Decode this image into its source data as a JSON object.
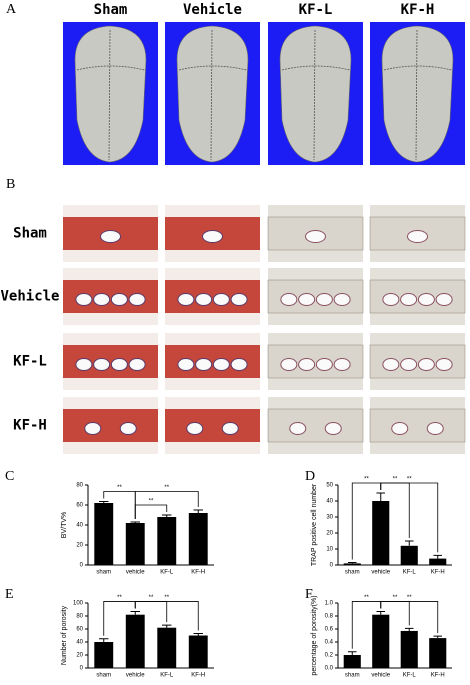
{
  "figure": {
    "panel_a": "A",
    "panel_b": "B",
    "columns": [
      "Sham",
      "Vehicle",
      "KF-L",
      "KF-H"
    ],
    "rows": [
      "Sham",
      "Vehicle",
      "KF-L",
      "KF-H"
    ]
  },
  "chart_data": [
    {
      "type": "bar",
      "panel": "C",
      "ylabel": "BV/TV%",
      "categories": [
        "sham",
        "vehicle",
        "KF-L",
        "KF-H"
      ],
      "values": [
        62,
        42,
        48,
        52
      ],
      "errors": [
        1.5,
        1,
        2,
        3
      ],
      "color": "#000000",
      "ylim": [
        0,
        80
      ],
      "yticks": [
        0,
        20,
        40,
        60,
        80
      ],
      "comparisons": [
        {
          "label": "**",
          "between": [
            "sham",
            "vehicle"
          ]
        },
        {
          "label": "**",
          "between": [
            "vehicle",
            "KF-L"
          ]
        },
        {
          "label": "**",
          "between": [
            "vehicle",
            "KF-H"
          ]
        }
      ]
    },
    {
      "type": "bar",
      "panel": "D",
      "ylabel": "TRAP positive cell number",
      "categories": [
        "sham",
        "vehicle",
        "KF-L",
        "KF-H"
      ],
      "values": [
        1,
        40,
        12,
        4
      ],
      "errors": [
        0.6,
        5,
        3,
        2
      ],
      "color": "#000000",
      "ylim": [
        0,
        50
      ],
      "yticks": [
        0,
        10,
        20,
        30,
        40,
        50
      ],
      "comparisons": [
        {
          "label": "**",
          "between": [
            "sham",
            "vehicle"
          ]
        },
        {
          "label": "**",
          "between": [
            "vehicle",
            "KF-L"
          ]
        },
        {
          "label": "**",
          "between": [
            "vehicle",
            "KF-H"
          ]
        }
      ]
    },
    {
      "type": "bar",
      "panel": "E",
      "ylabel": "Number of porosity",
      "categories": [
        "sham",
        "vehicle",
        "KF-L",
        "KF-H"
      ],
      "values": [
        40,
        82,
        62,
        50
      ],
      "errors": [
        5,
        5,
        4,
        3
      ],
      "color": "#000000",
      "ylim": [
        0,
        100
      ],
      "yticks": [
        0,
        20,
        40,
        60,
        80,
        100
      ],
      "comparisons": [
        {
          "label": "**",
          "between": [
            "sham",
            "vehicle"
          ]
        },
        {
          "label": "**",
          "between": [
            "vehicle",
            "KF-L"
          ]
        },
        {
          "label": "**",
          "between": [
            "vehicle",
            "KF-H"
          ]
        }
      ]
    },
    {
      "type": "bar",
      "panel": "F",
      "ylabel": "percentage of porosity(%)",
      "categories": [
        "sham",
        "vehicle",
        "KF-L",
        "KF-H"
      ],
      "values": [
        0.2,
        0.82,
        0.57,
        0.46
      ],
      "errors": [
        0.05,
        0.05,
        0.04,
        0.03
      ],
      "color": "#000000",
      "ylim": [
        0,
        1
      ],
      "yticks": [
        {
          "value": 0,
          "label": "0.0"
        },
        0.2,
        0.4,
        0.6,
        0.8,
        {
          "value": 1,
          "label": "1.0"
        }
      ],
      "comparisons": [
        {
          "label": "**",
          "between": [
            "sham",
            "vehicle"
          ]
        },
        {
          "label": "**",
          "between": [
            "vehicle",
            "KF-L"
          ]
        },
        {
          "label": "**",
          "between": [
            "vehicle",
            "KF-H"
          ]
        }
      ]
    }
  ]
}
